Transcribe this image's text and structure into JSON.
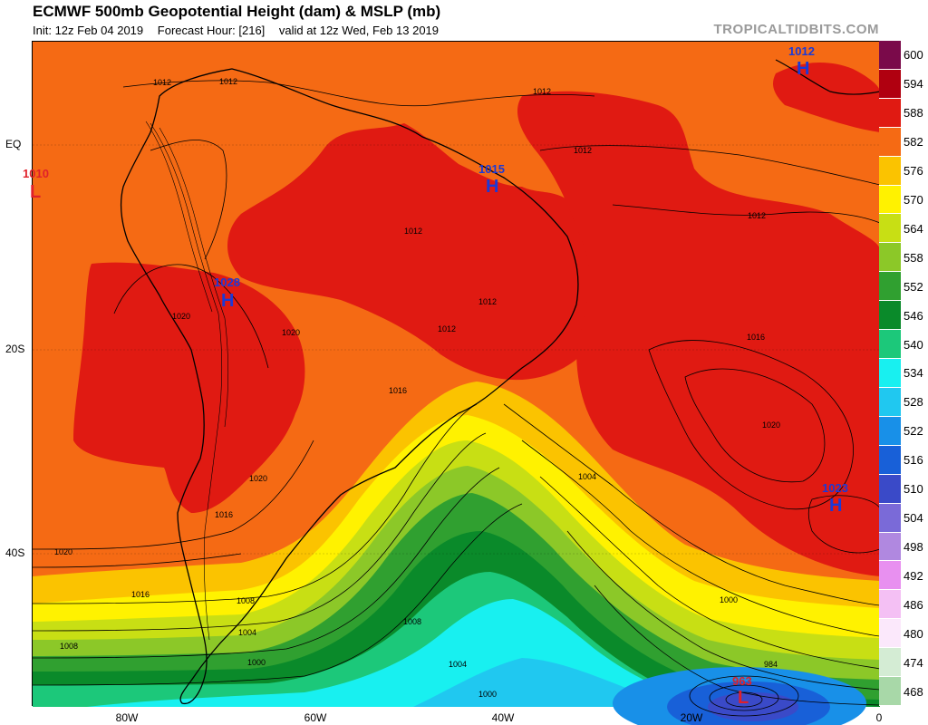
{
  "header": {
    "title": "ECMWF 500mb Geopotential Height (dam) & MSLP (mb)",
    "init": "Init: 12z Feb 04 2019",
    "forecast_hour": "Forecast Hour: [216]",
    "valid": "valid at 12z Wed, Feb 13 2019",
    "brand": "TROPICALTIDBITS.COM"
  },
  "axes": {
    "lat_labels": [
      "EQ",
      "20S",
      "40S"
    ],
    "lon_labels": [
      "80W",
      "60W",
      "40W",
      "20W",
      "0"
    ]
  },
  "colorbar": {
    "levels": [
      "600",
      "594",
      "588",
      "582",
      "576",
      "570",
      "564",
      "558",
      "552",
      "546",
      "540",
      "534",
      "528",
      "522",
      "516",
      "510",
      "504",
      "498",
      "492",
      "486",
      "480",
      "474",
      "468"
    ],
    "colors": [
      "#7a0a4a",
      "#b00010",
      "#e01a12",
      "#f56a14",
      "#fbc300",
      "#fff200",
      "#c8df14",
      "#8cc828",
      "#30a030",
      "#0a8a2a",
      "#1cc87a",
      "#18f0f0",
      "#20c8f0",
      "#1890e8",
      "#1860d8",
      "#3a4ac8",
      "#7a6ad8",
      "#b088e0",
      "#e890f0",
      "#f4c0f4",
      "#fbe8fb",
      "#d4ecd4",
      "#a8d8a8"
    ]
  },
  "pressure_centers": [
    {
      "type": "L",
      "value": "1010",
      "color": "#e0202a"
    },
    {
      "type": "H",
      "value": "1015",
      "color": "#1a3ad8"
    },
    {
      "type": "H",
      "value": "1028",
      "color": "#1a3ad8"
    },
    {
      "type": "H",
      "value": "1012",
      "color": "#1a3ad8"
    },
    {
      "type": "H",
      "value": "1023",
      "color": "#1a3ad8"
    },
    {
      "type": "L",
      "value": "963",
      "color": "#e0202a"
    }
  ],
  "isobar_labels": [
    "1012",
    "1012",
    "1012",
    "1012",
    "1012",
    "1012",
    "1012",
    "1012",
    "1016",
    "1016",
    "1016",
    "1016",
    "1020",
    "1020",
    "1020",
    "1020",
    "1020",
    "1004",
    "1004",
    "1004",
    "1008",
    "1008",
    "1008",
    "1000",
    "1000",
    "1000",
    "984"
  ]
}
